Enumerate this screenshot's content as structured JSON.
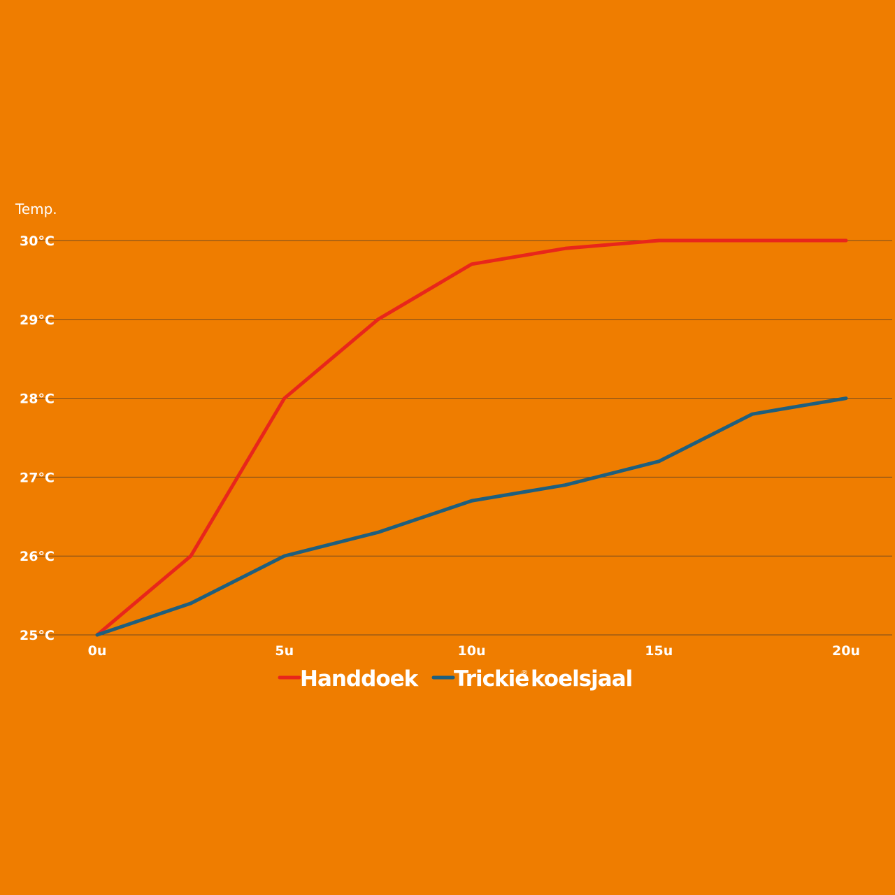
{
  "chart_data": {
    "type": "line",
    "ylabel": "Temp.",
    "xlabel": "",
    "x_ticks": [
      0,
      5,
      10,
      15,
      20
    ],
    "x_tick_labels": [
      "0u",
      "5u",
      "10u",
      "15u",
      "20u"
    ],
    "y_ticks": [
      25,
      26,
      27,
      28,
      29,
      30
    ],
    "y_tick_labels": [
      "25°C",
      "26°C",
      "27°C",
      "28°C",
      "29°C",
      "30°C"
    ],
    "xlim": [
      0,
      20
    ],
    "ylim": [
      25,
      30
    ],
    "grid": true,
    "legend_position": "bottom-center",
    "x": [
      0,
      2.5,
      5,
      7.5,
      10,
      12.5,
      15,
      17.5,
      20
    ],
    "series": [
      {
        "name": "Handdoek",
        "color": "#E8261B",
        "values": [
          25,
          26,
          28,
          29,
          29.7,
          29.9,
          30,
          30,
          30
        ]
      },
      {
        "name": "Trickie",
        "name_suffix": "koelsjaal",
        "name_mark": "®",
        "color": "#1E5F7E",
        "values": [
          25,
          25.4,
          26,
          26.3,
          26.7,
          26.9,
          27.2,
          27.8,
          28
        ]
      }
    ]
  }
}
